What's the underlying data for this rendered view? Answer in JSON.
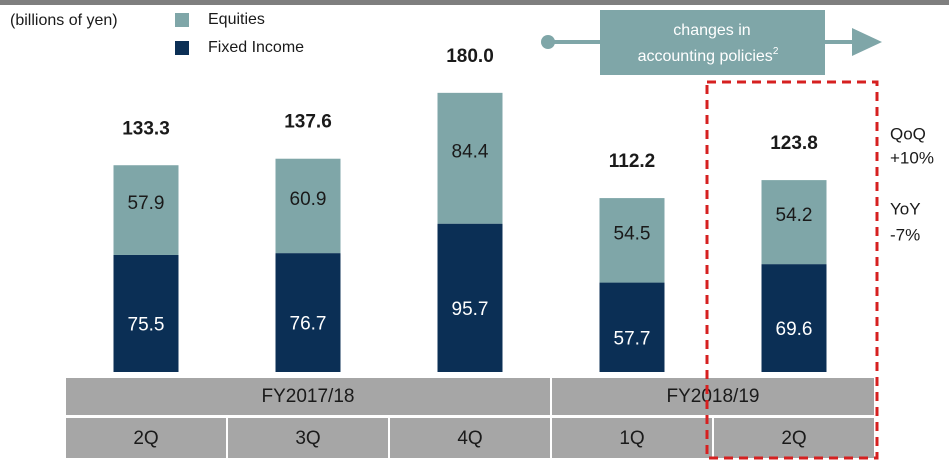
{
  "chart_data": {
    "type": "stacked_bar",
    "unit_label": "(billions of yen)",
    "categories": [
      "2Q",
      "3Q",
      "4Q",
      "1Q",
      "2Q"
    ],
    "groups": [
      {
        "label": "FY2017/18",
        "span": 3
      },
      {
        "label": "FY2018/19",
        "span": 2
      }
    ],
    "series": [
      {
        "name": "Fixed Income",
        "color": "#0b2f55",
        "values": [
          75.5,
          76.7,
          95.7,
          57.7,
          69.6
        ]
      },
      {
        "name": "Equities",
        "color": "#7fa6a8",
        "values": [
          57.9,
          60.9,
          84.4,
          54.5,
          54.2
        ]
      }
    ],
    "totals": [
      133.3,
      137.6,
      180.0,
      112.2,
      123.8
    ],
    "total_labels": [
      "133.3",
      "137.6",
      "180.0",
      "112.2",
      "123.8"
    ],
    "arrow_label": [
      "changes in",
      "accounting policies"
    ],
    "arrow_label_note": "2",
    "annotations": [
      [
        "QoQ",
        "+10%"
      ],
      [
        "YoY",
        "-7%"
      ]
    ]
  }
}
